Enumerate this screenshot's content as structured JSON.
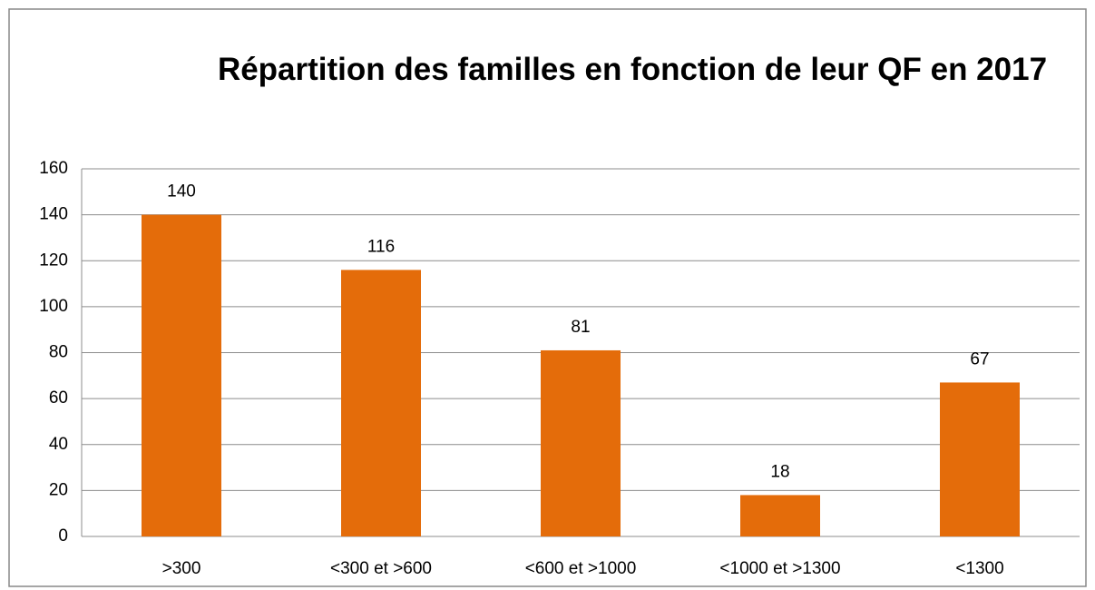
{
  "chart_data": {
    "type": "bar",
    "title": "Répartition des familles en fonction de leur QF en 2017",
    "categories": [
      ">300",
      "<300 et >600",
      "<600 et >1000",
      "<1000 et >1300",
      "<1300"
    ],
    "values": [
      140,
      116,
      81,
      18,
      67
    ],
    "color": "#e46c0a",
    "ylim": [
      0,
      160
    ],
    "yticks": [
      0,
      20,
      40,
      60,
      80,
      100,
      120,
      140,
      160
    ],
    "grid": true
  }
}
